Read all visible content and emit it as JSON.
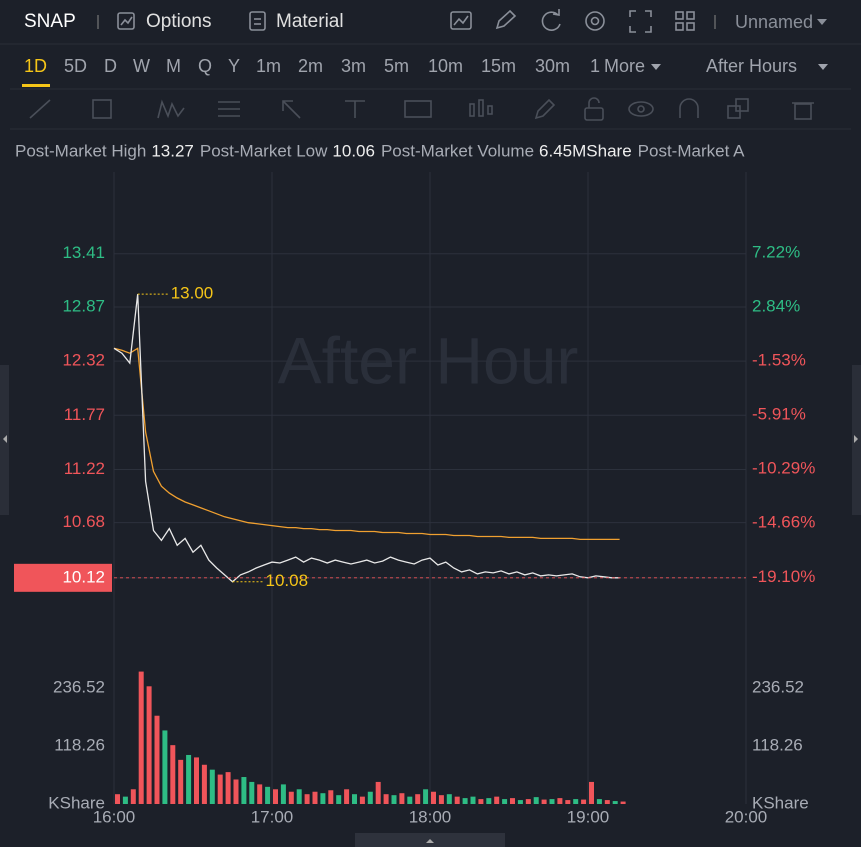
{
  "header": {
    "symbol": "SNAP",
    "tabs": [
      "Options",
      "Material"
    ],
    "layout_name": "Unnamed"
  },
  "timeframes": {
    "items": [
      "1D",
      "5D",
      "D",
      "W",
      "M",
      "Q",
      "Y",
      "1m",
      "2m",
      "3m",
      "5m",
      "10m",
      "15m",
      "30m",
      "1"
    ],
    "more": "More",
    "session": "After Hours"
  },
  "info": [
    {
      "label": "Post-Market High",
      "value": "13.27"
    },
    {
      "label": "Post-Market Low",
      "value": "10.06"
    },
    {
      "label": "Post-Market Volume",
      "value": "6.45MShare"
    },
    {
      "label": "Post-Market A"
    }
  ],
  "chart_data": {
    "type": "line",
    "watermark": "After Hour",
    "x": [
      "16:00",
      "16:03",
      "16:06",
      "16:09",
      "16:12",
      "16:15",
      "16:18",
      "16:21",
      "16:24",
      "16:27",
      "16:30",
      "16:33",
      "16:36",
      "16:39",
      "16:42",
      "16:45",
      "16:48",
      "16:51",
      "16:54",
      "16:57",
      "17:00",
      "17:03",
      "17:06",
      "17:09",
      "17:12",
      "17:15",
      "17:18",
      "17:21",
      "17:24",
      "17:27",
      "17:30",
      "17:33",
      "17:36",
      "17:39",
      "17:42",
      "17:45",
      "17:48",
      "17:51",
      "17:54",
      "17:57",
      "18:00",
      "18:03",
      "18:06",
      "18:09",
      "18:12",
      "18:15",
      "18:18",
      "18:21",
      "18:24",
      "18:27",
      "18:30",
      "18:33",
      "18:36",
      "18:39",
      "18:42",
      "18:45",
      "18:48",
      "18:51",
      "18:54",
      "18:57",
      "19:00",
      "19:03",
      "19:06",
      "19:09",
      "19:12"
    ],
    "series": [
      {
        "color": "#e8e8e8",
        "values": [
          12.45,
          12.4,
          12.3,
          13.0,
          11.1,
          10.6,
          10.5,
          10.62,
          10.45,
          10.52,
          10.38,
          10.45,
          10.3,
          10.22,
          10.15,
          10.08,
          10.15,
          10.18,
          10.22,
          10.25,
          10.28,
          10.27,
          10.3,
          10.33,
          10.28,
          10.32,
          10.3,
          10.27,
          10.3,
          10.28,
          10.26,
          10.28,
          10.3,
          10.27,
          10.29,
          10.33,
          10.3,
          10.28,
          10.26,
          10.3,
          10.32,
          10.25,
          10.28,
          10.22,
          10.18,
          10.2,
          10.16,
          10.18,
          10.17,
          10.19,
          10.16,
          10.18,
          10.15,
          10.17,
          10.14,
          10.15,
          10.14,
          10.15,
          10.16,
          10.13,
          10.12,
          10.14,
          10.13,
          10.12,
          10.12
        ]
      },
      {
        "color": "#f0a030",
        "values": [
          12.45,
          12.43,
          12.4,
          12.45,
          11.6,
          11.2,
          11.05,
          10.98,
          10.93,
          10.89,
          10.86,
          10.83,
          10.8,
          10.77,
          10.74,
          10.72,
          10.7,
          10.68,
          10.67,
          10.66,
          10.65,
          10.64,
          10.63,
          10.63,
          10.62,
          10.62,
          10.61,
          10.61,
          10.6,
          10.6,
          10.6,
          10.59,
          10.59,
          10.59,
          10.58,
          10.58,
          10.58,
          10.57,
          10.57,
          10.57,
          10.56,
          10.56,
          10.56,
          10.55,
          10.55,
          10.55,
          10.54,
          10.54,
          10.54,
          10.54,
          10.53,
          10.53,
          10.53,
          10.53,
          10.52,
          10.52,
          10.52,
          10.52,
          10.52,
          10.51,
          10.51,
          10.51,
          10.51,
          10.51,
          10.51
        ]
      }
    ],
    "volume": {
      "values": [
        20,
        15,
        30,
        270,
        240,
        180,
        150,
        120,
        90,
        100,
        95,
        80,
        70,
        60,
        65,
        50,
        55,
        45,
        40,
        35,
        30,
        40,
        25,
        30,
        20,
        25,
        22,
        28,
        18,
        30,
        20,
        15,
        25,
        45,
        20,
        18,
        22,
        15,
        20,
        30,
        25,
        18,
        20,
        15,
        12,
        15,
        10,
        12,
        15,
        10,
        12,
        8,
        10,
        14,
        9,
        10,
        12,
        8,
        10,
        9,
        45,
        10,
        8,
        6,
        5
      ],
      "colors": [
        "#f0555a",
        "#2ebd85",
        "#f0555a",
        "#f0555a",
        "#f0555a",
        "#f0555a",
        "#2ebd85",
        "#f0555a",
        "#f0555a",
        "#2ebd85",
        "#f0555a",
        "#f0555a",
        "#2ebd85",
        "#f0555a",
        "#f0555a",
        "#f0555a",
        "#2ebd85",
        "#2ebd85",
        "#f0555a",
        "#2ebd85",
        "#f0555a",
        "#2ebd85",
        "#f0555a",
        "#2ebd85",
        "#f0555a",
        "#f0555a",
        "#2ebd85",
        "#f0555a",
        "#2ebd85",
        "#f0555a",
        "#2ebd85",
        "#f0555a",
        "#2ebd85",
        "#f0555a",
        "#f0555a",
        "#2ebd85",
        "#f0555a",
        "#2ebd85",
        "#f0555a",
        "#2ebd85",
        "#f0555a",
        "#f0555a",
        "#2ebd85",
        "#f0555a",
        "#2ebd85",
        "#2ebd85",
        "#f0555a",
        "#2ebd85",
        "#f0555a",
        "#2ebd85",
        "#f0555a",
        "#2ebd85",
        "#f0555a",
        "#2ebd85",
        "#f0555a",
        "#2ebd85",
        "#f0555a",
        "#f0555a",
        "#2ebd85",
        "#f0555a",
        "#f0555a",
        "#2ebd85",
        "#f0555a",
        "#2ebd85",
        "#f0555a"
      ],
      "ylim": [
        0,
        334.4
      ],
      "yticks": [
        {
          "value": 0,
          "label": "KShare"
        },
        118.26,
        236.52
      ]
    },
    "xlim": [
      "16:00",
      "20:00"
    ],
    "xticks": [
      "16:00",
      "17:00",
      "18:00",
      "19:00",
      "20:00"
    ],
    "ylim": [
      9.57,
      14.24
    ],
    "yticks": [
      13.41,
      12.87,
      12.32,
      11.77,
      11.22,
      10.68,
      10.12
    ],
    "y2lim": [
      -23.5,
      13.8
    ],
    "y2ticks": [
      {
        "value": 7.22,
        "label": "7.22%"
      },
      {
        "value": 2.84,
        "label": "2.84%"
      },
      {
        "value": -1.53,
        "label": "-1.53%"
      },
      {
        "value": -5.91,
        "label": "-5.91%"
      },
      {
        "value": -10.29,
        "label": "-10.29%"
      },
      {
        "value": -14.66,
        "label": "-14.66%"
      },
      {
        "value": -19.1,
        "label": "-19.10%"
      }
    ],
    "grid": true,
    "annotations": [
      {
        "x": "16:09",
        "value": 13.0,
        "label": "13.00"
      },
      {
        "x": "16:45",
        "value": 10.08,
        "label": "10.08"
      }
    ]
  }
}
